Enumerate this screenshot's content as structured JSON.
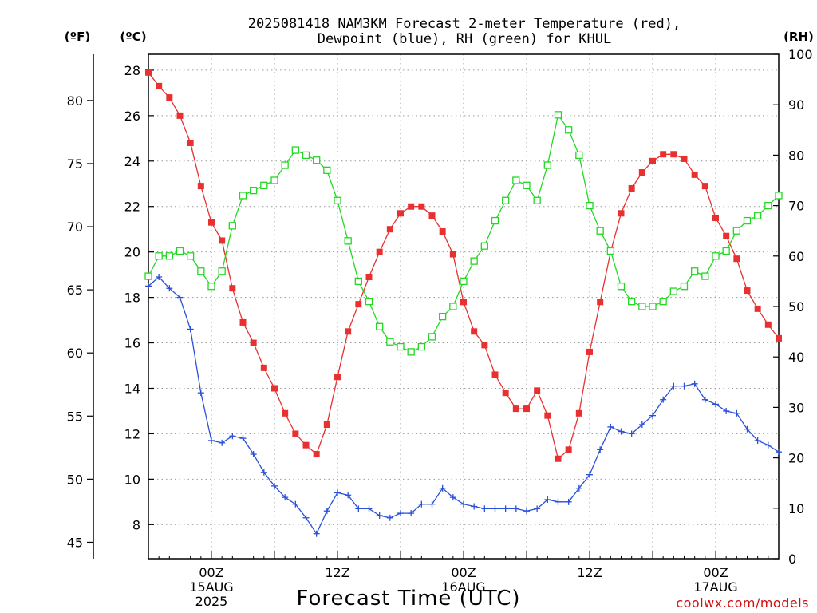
{
  "chart_data": {
    "type": "line",
    "title_line1": "2025081418 NAM3KM Forecast 2-meter Temperature (red),",
    "title_line2": "Dewpoint (blue), RH (green) for KHUL",
    "left_outer_unit": "(ºF)",
    "left_inner_unit": "(ºC)",
    "right_unit": "(RH)",
    "xlabel": "Forecast Time (UTC)",
    "credit": "coolwx.com/models",
    "grid": true,
    "x_start_hour": 18,
    "x_end_hour": 78,
    "x_ticks": [
      {
        "hour": 24,
        "lines": [
          "00Z",
          "15AUG",
          "2025"
        ]
      },
      {
        "hour": 36,
        "lines": [
          "12Z"
        ]
      },
      {
        "hour": 48,
        "lines": [
          "00Z",
          "16AUG"
        ]
      },
      {
        "hour": 60,
        "lines": [
          "12Z"
        ]
      },
      {
        "hour": 72,
        "lines": [
          "00Z",
          "17AUG"
        ]
      }
    ],
    "celsius_axis": {
      "min": 6.5,
      "max": 28.7,
      "ticks": [
        8,
        10,
        12,
        14,
        16,
        18,
        20,
        22,
        24,
        26,
        28
      ]
    },
    "fahrenheit_axis": {
      "ticks": [
        45,
        50,
        55,
        60,
        65,
        70,
        75,
        80
      ]
    },
    "rh_axis": {
      "min": 0,
      "max": 100,
      "ticks": [
        0,
        10,
        20,
        30,
        40,
        50,
        60,
        70,
        80,
        90,
        100
      ]
    },
    "series": [
      {
        "name": "Temperature",
        "color": "#e83030",
        "marker": "filled-square",
        "axis": "celsius",
        "values": [
          27.9,
          27.3,
          26.8,
          26.0,
          24.8,
          22.9,
          21.3,
          20.5,
          18.4,
          16.9,
          16.0,
          14.9,
          14.0,
          12.9,
          12.0,
          11.5,
          11.1,
          12.4,
          14.5,
          16.5,
          17.7,
          18.9,
          20.0,
          21.0,
          21.7,
          22.0,
          22.0,
          21.6,
          20.9,
          19.9,
          17.8,
          16.5,
          15.9,
          14.6,
          13.8,
          13.1,
          13.1,
          13.9,
          12.8,
          10.9,
          11.3,
          12.9,
          15.6,
          17.8,
          20.0,
          21.7,
          22.8,
          23.5,
          24.0,
          24.3,
          24.3,
          24.1,
          23.4,
          22.9,
          21.5,
          20.7,
          19.7,
          18.3,
          17.5,
          16.8,
          16.2
        ]
      },
      {
        "name": "Dewpoint",
        "color": "#2a4fd8",
        "marker": "plus",
        "axis": "celsius",
        "values": [
          18.5,
          18.9,
          18.4,
          18.0,
          16.6,
          13.8,
          11.7,
          11.6,
          11.9,
          11.8,
          11.1,
          10.3,
          9.7,
          9.2,
          8.9,
          8.3,
          7.6,
          8.6,
          9.4,
          9.3,
          8.7,
          8.7,
          8.4,
          8.3,
          8.5,
          8.5,
          8.9,
          8.9,
          9.6,
          9.2,
          8.9,
          8.8,
          8.7,
          8.7,
          8.7,
          8.7,
          8.6,
          8.7,
          9.1,
          9.0,
          9.0,
          9.6,
          10.2,
          11.3,
          12.3,
          12.1,
          12.0,
          12.4,
          12.8,
          13.5,
          14.1,
          14.1,
          14.2,
          13.5,
          13.3,
          13.0,
          12.9,
          12.2,
          11.7,
          11.5,
          11.2
        ]
      },
      {
        "name": "RH",
        "color": "#22d822",
        "marker": "open-square",
        "axis": "rh",
        "values": [
          56,
          60,
          60,
          61,
          60,
          57,
          54,
          57,
          66,
          72,
          73,
          74,
          75,
          78,
          81,
          80,
          79,
          77,
          71,
          63,
          55,
          51,
          46,
          43,
          42,
          41,
          42,
          44,
          48,
          50,
          55,
          59,
          62,
          67,
          71,
          75,
          74,
          71,
          78,
          88,
          85,
          80,
          70,
          65,
          61,
          54,
          51,
          50,
          50,
          51,
          53,
          54,
          57,
          56,
          60,
          61,
          65,
          67,
          68,
          70,
          72
        ]
      }
    ]
  }
}
